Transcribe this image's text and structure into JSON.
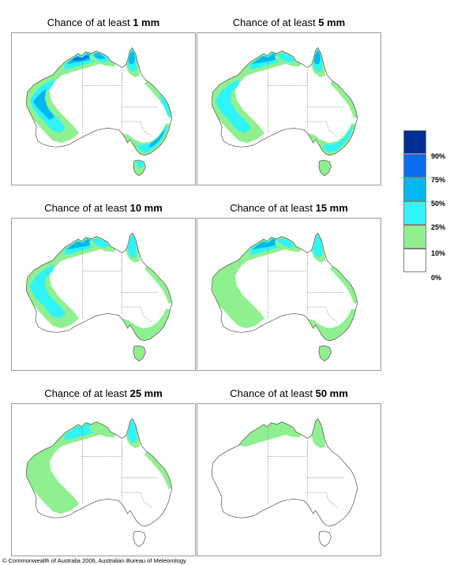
{
  "panels": [
    {
      "title_prefix": "Chance of at least",
      "title_value": "1 mm",
      "coverage": {
        "north_kimberley": 4,
        "top_end": 3,
        "cape_york": 3,
        "queensland_coast": 2,
        "western": 3,
        "southern_band": 1,
        "southeast": 3,
        "tasmania": 2
      }
    },
    {
      "title_prefix": "Chance of at least",
      "title_value": "5 mm",
      "coverage": {
        "north_kimberley": 3,
        "top_end": 2,
        "cape_york": 3,
        "queensland_coast": 1,
        "western": 2,
        "southern_band": 1,
        "southeast": 2,
        "tasmania": 1
      }
    },
    {
      "title_prefix": "Chance of at least",
      "title_value": "10 mm",
      "coverage": {
        "north_kimberley": 3,
        "top_end": 2,
        "cape_york": 2,
        "queensland_coast": 1,
        "western": 2,
        "southern_band": 0,
        "southeast": 1,
        "tasmania": 1
      }
    },
    {
      "title_prefix": "Chance of at least",
      "title_value": "15 mm",
      "coverage": {
        "north_kimberley": 3,
        "top_end": 2,
        "cape_york": 2,
        "queensland_coast": 1,
        "western": 1,
        "southern_band": 0,
        "southeast": 1,
        "tasmania": 1
      }
    },
    {
      "title_prefix": "Chance of at least",
      "title_value": "25 mm",
      "coverage": {
        "north_kimberley": 2,
        "top_end": 1,
        "cape_york": 2,
        "queensland_coast": 1,
        "western": 1,
        "southern_band": 0,
        "southeast": 0,
        "tasmania": 0
      }
    },
    {
      "title_prefix": "Chance of at least",
      "title_value": "50 mm",
      "coverage": {
        "north_kimberley": 1,
        "top_end": 1,
        "cape_york": 1,
        "queensland_coast": 0,
        "western": 0,
        "southern_band": 0,
        "southeast": 0,
        "tasmania": 0
      }
    }
  ],
  "legend": {
    "labels": [
      "90%",
      "75%",
      "50%",
      "25%",
      "10%",
      "0%"
    ],
    "colors": [
      "#002e95",
      "#0a6cf0",
      "#00b8f0",
      "#2ef4fa",
      "#90f090",
      "#ffffff"
    ]
  },
  "copyright": "© Commonwealth of Australia 2006, Australian Bureau of Meteorology"
}
